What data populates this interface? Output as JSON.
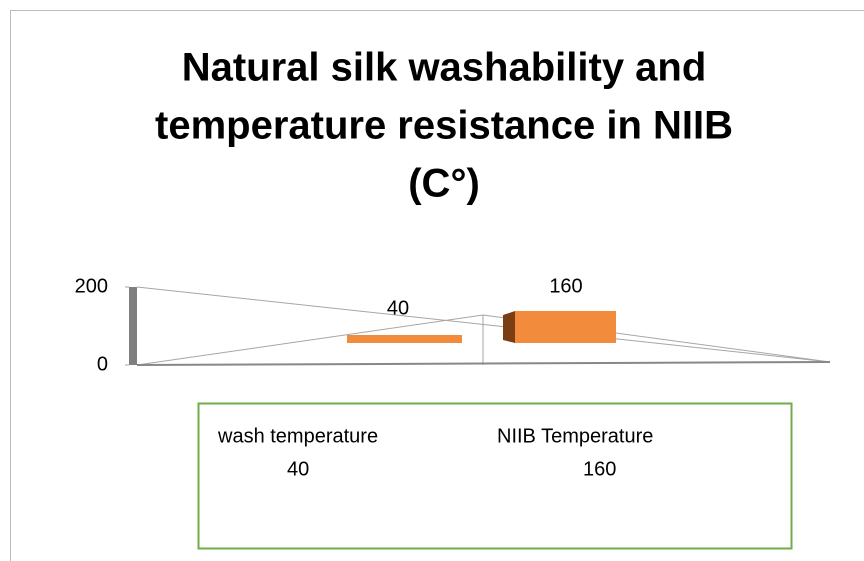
{
  "chart_data": {
    "type": "bar",
    "title_lines": [
      "Natural silk washability and",
      "temperature resistance in NIIB",
      "(C°)"
    ],
    "categories": [
      "wash temperature",
      "NIIB Temperature"
    ],
    "values": [
      40,
      160
    ],
    "color": "#f28c3c",
    "ylim": [
      0,
      200
    ],
    "yticks": [
      0,
      200
    ]
  }
}
